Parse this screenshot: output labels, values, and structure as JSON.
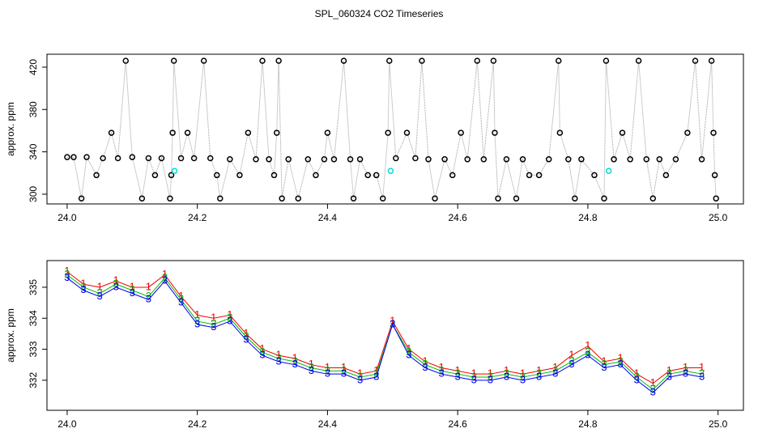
{
  "chart_data": [
    {
      "type": "line",
      "title": "SPL_060324  CO2 Timeseries",
      "ylabel": "approx. ppm",
      "xlim": [
        23.969,
        25.039
      ],
      "ylim": [
        290.8,
        432.2
      ],
      "xticks": [
        {
          "value": 24,
          "label": "24.0"
        },
        24.2,
        24.4,
        24.6,
        24.8,
        {
          "value": 25,
          "label": "25.0"
        }
      ],
      "yticks": [
        300,
        340,
        380,
        420
      ],
      "series": [
        {
          "color": "#000000",
          "line_color": "#9a9a9a",
          "marker": "circle",
          "x": [
            24.0,
            24.01,
            24.022,
            24.03,
            24.045,
            24.055,
            24.068,
            24.078,
            24.09,
            24.1,
            24.115,
            24.125,
            24.135,
            24.145,
            24.158,
            24.16,
            24.162,
            24.164,
            24.175,
            24.185,
            24.195,
            24.21,
            24.22,
            24.23,
            24.235,
            24.25,
            24.265,
            24.278,
            24.29,
            24.3,
            24.31,
            24.318,
            24.322,
            24.325,
            24.33,
            24.34,
            24.355,
            24.37,
            24.382,
            24.395,
            24.4,
            24.41,
            24.425,
            24.435,
            24.44,
            24.45,
            24.462,
            24.475,
            24.485,
            24.493,
            24.495,
            24.505,
            24.522,
            24.535,
            24.545,
            24.555,
            24.565,
            24.58,
            24.592,
            24.605,
            24.615,
            24.63,
            24.64,
            24.655,
            24.657,
            24.662,
            24.675,
            24.69,
            24.7,
            24.71,
            24.725,
            24.74,
            24.755,
            24.757,
            24.77,
            24.78,
            24.79,
            24.81,
            24.825,
            24.828,
            24.84,
            24.853,
            24.865,
            24.878,
            24.89,
            24.9,
            24.91,
            24.92,
            24.935,
            24.953,
            24.965,
            24.975,
            24.99,
            24.993,
            24.995,
            24.997
          ],
          "values": [
            335,
            335,
            296,
            335,
            318,
            334,
            358,
            334,
            426,
            335,
            296,
            334,
            318,
            334,
            296,
            318,
            358,
            426,
            334,
            358,
            334,
            426,
            334,
            318,
            296,
            333,
            318,
            358,
            333,
            426,
            333,
            318,
            358,
            426,
            296,
            333,
            296,
            333,
            318,
            333,
            358,
            333,
            426,
            333,
            296,
            333,
            318,
            318,
            296,
            358,
            426,
            334,
            358,
            334,
            426,
            333,
            296,
            333,
            318,
            358,
            333,
            426,
            333,
            426,
            358,
            296,
            333,
            296,
            333,
            318,
            318,
            333,
            426,
            358,
            333,
            296,
            333,
            318,
            296,
            426,
            333,
            358,
            333,
            426,
            333,
            296,
            333,
            318,
            333,
            358,
            426,
            333,
            426,
            358,
            318,
            296
          ]
        },
        {
          "color": "#00dddd",
          "marker": "circle",
          "x": [
            24.165,
            24.497,
            24.832
          ],
          "values": [
            322,
            322,
            322
          ]
        }
      ]
    },
    {
      "type": "line",
      "ylabel": "approx. ppm",
      "xlim": [
        23.969,
        25.039
      ],
      "ylim": [
        331.03,
        335.86
      ],
      "xticks": [
        {
          "value": 24,
          "label": "24.0"
        },
        24.2,
        24.4,
        24.6,
        24.8,
        {
          "value": 25,
          "label": "25.0"
        }
      ],
      "yticks": [
        332,
        333,
        334,
        335
      ],
      "x": [
        24.0,
        24.025,
        24.05,
        24.075,
        24.1,
        24.125,
        24.15,
        24.175,
        24.2,
        24.225,
        24.25,
        24.275,
        24.3,
        24.325,
        24.35,
        24.375,
        24.4,
        24.425,
        24.45,
        24.475,
        24.5,
        24.525,
        24.55,
        24.575,
        24.6,
        24.625,
        24.65,
        24.675,
        24.7,
        24.725,
        24.75,
        24.775,
        24.8,
        24.825,
        24.85,
        24.875,
        24.9,
        24.925,
        24.95,
        24.975
      ],
      "series": [
        {
          "name": "1",
          "color": "#ee0000",
          "marker": "text",
          "values": [
            335.5,
            335.1,
            335.0,
            335.2,
            335.0,
            335.0,
            335.4,
            334.7,
            334.1,
            334.0,
            334.1,
            333.5,
            333.0,
            332.8,
            332.7,
            332.5,
            332.4,
            332.4,
            332.2,
            332.3,
            333.9,
            333.0,
            332.6,
            332.4,
            332.3,
            332.2,
            332.2,
            332.3,
            332.2,
            332.3,
            332.4,
            332.8,
            333.1,
            332.6,
            332.7,
            332.2,
            331.9,
            332.3,
            332.4,
            332.4
          ]
        },
        {
          "name": "2",
          "color": "#00bb00",
          "marker": "text",
          "values": [
            335.4,
            335.0,
            334.8,
            335.1,
            334.9,
            334.7,
            335.3,
            334.6,
            333.9,
            333.8,
            334.0,
            333.4,
            332.9,
            332.7,
            332.6,
            332.4,
            332.3,
            332.3,
            332.1,
            332.2,
            333.8,
            332.9,
            332.5,
            332.3,
            332.2,
            332.1,
            332.1,
            332.2,
            332.1,
            332.2,
            332.3,
            332.6,
            332.9,
            332.5,
            332.6,
            332.1,
            331.7,
            332.2,
            332.3,
            332.2
          ]
        },
        {
          "name": "3",
          "color": "#0000ee",
          "marker": "text",
          "values": [
            335.3,
            334.9,
            334.7,
            335.0,
            334.8,
            334.6,
            335.2,
            334.5,
            333.8,
            333.7,
            333.9,
            333.3,
            332.8,
            332.6,
            332.5,
            332.3,
            332.2,
            332.2,
            332.0,
            332.1,
            333.8,
            332.8,
            332.4,
            332.2,
            332.1,
            332.0,
            332.0,
            332.1,
            332.0,
            332.1,
            332.2,
            332.5,
            332.8,
            332.4,
            332.5,
            332.0,
            331.6,
            332.1,
            332.2,
            332.1
          ]
        }
      ]
    }
  ]
}
